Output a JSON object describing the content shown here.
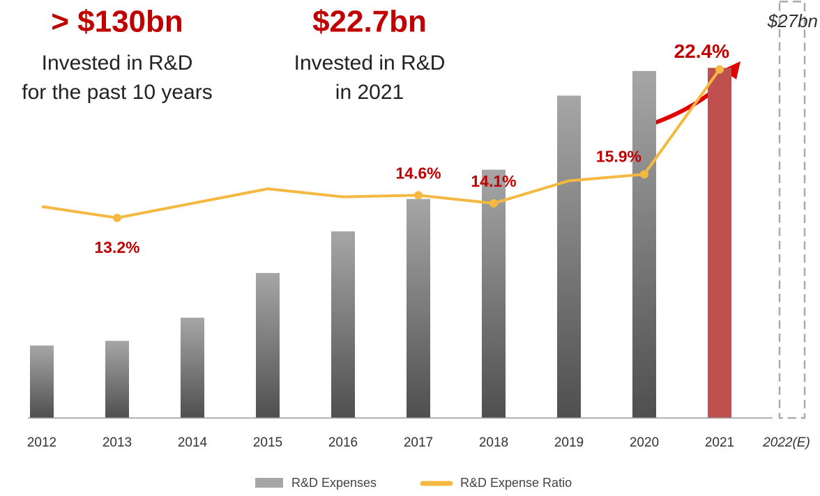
{
  "chart_data": {
    "type": "bar_line",
    "headlines": [
      {
        "value_text": "> $130bn",
        "lines": [
          "Invested in R&D",
          "for the past 10 years"
        ]
      },
      {
        "value_text": "$22.7bn",
        "lines": [
          "Invested in R&D",
          "in 2021"
        ]
      }
    ],
    "categories": [
      "2012",
      "2013",
      "2014",
      "2015",
      "2016",
      "2017",
      "2018",
      "2019",
      "2020",
      "2021",
      "2022(E)"
    ],
    "ylim": [
      0,
      27.1
    ],
    "y2lim": [
      0.8,
      26.7
    ],
    "series": [
      {
        "name": "R&D Expenses",
        "type": "bar",
        "color": "#a6a6a6",
        "highlight_color": "#c0504d",
        "values": [
          4.7,
          5.0,
          6.5,
          9.4,
          12.1,
          14.2,
          16.1,
          20.9,
          22.5,
          22.7,
          27
        ],
        "value_labels": [
          null,
          null,
          null,
          null,
          null,
          null,
          null,
          null,
          null,
          null,
          "$27bn"
        ]
      },
      {
        "name": "R&D Expense Ratio",
        "type": "line",
        "axis": "y2",
        "color": "#f5b942",
        "values": [
          13.9,
          13.2,
          14.1,
          15.0,
          14.5,
          14.6,
          14.1,
          15.5,
          15.9,
          22.4,
          null
        ],
        "value_labels": [
          null,
          "13.2%",
          null,
          null,
          null,
          "14.6%",
          "14.1%",
          null,
          "15.9%",
          "22.4%",
          null
        ]
      }
    ]
  }
}
